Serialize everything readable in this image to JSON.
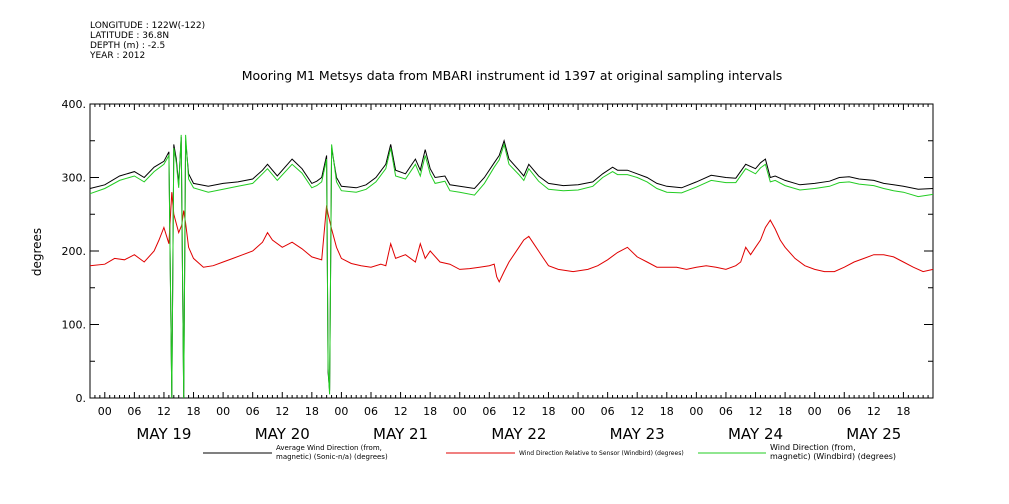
{
  "metadata": {
    "longitude": "LONGITUDE : 122W(-122)",
    "latitude": "LATITUDE : 36.8N",
    "depth": "DEPTH (m) : -2.5",
    "year": "YEAR : 2012"
  },
  "chart_data": {
    "type": "line",
    "title": "Mooring M1 Metsys data from MBARI instrument id 1397 at original sampling intervals",
    "ylabel": "degrees",
    "ylim": [
      0,
      400
    ],
    "y_ticks": [
      0,
      100,
      200,
      300,
      400
    ],
    "y_tick_labels": [
      "0.",
      "100.",
      "200.",
      "300.",
      "400."
    ],
    "xlim_hours": [
      -3,
      168
    ],
    "x_hour_labels": [
      "00",
      "06",
      "12",
      "18"
    ],
    "day_labels": [
      "MAY 19",
      "MAY 20",
      "MAY 21",
      "MAY 22",
      "MAY 23",
      "MAY 24",
      "MAY 25"
    ],
    "grid": false,
    "legend_position": "bottom",
    "series": [
      {
        "name": "Average Wind Direction (from, magnetic) (Sonic-n/a) (degrees)",
        "color": "#000000",
        "points": [
          [
            -3,
            285
          ],
          [
            0,
            290
          ],
          [
            3,
            302
          ],
          [
            6,
            308
          ],
          [
            8,
            300
          ],
          [
            10,
            314
          ],
          [
            12,
            322
          ],
          [
            13,
            335
          ],
          [
            13.6,
            0
          ],
          [
            14,
            345
          ],
          [
            14.5,
            325
          ],
          [
            15,
            290
          ],
          [
            15.5,
            355
          ],
          [
            16,
            0
          ],
          [
            16.4,
            350
          ],
          [
            17,
            305
          ],
          [
            18,
            292
          ],
          [
            21,
            288
          ],
          [
            24,
            292
          ],
          [
            27,
            294
          ],
          [
            30,
            298
          ],
          [
            32,
            310
          ],
          [
            33,
            318
          ],
          [
            35,
            302
          ],
          [
            38,
            325
          ],
          [
            40,
            312
          ],
          [
            42,
            292
          ],
          [
            43,
            295
          ],
          [
            44,
            300
          ],
          [
            45,
            330
          ],
          [
            45.3,
            35
          ],
          [
            45.6,
            10
          ],
          [
            46,
            340
          ],
          [
            47,
            300
          ],
          [
            48,
            288
          ],
          [
            51,
            286
          ],
          [
            53,
            290
          ],
          [
            55,
            300
          ],
          [
            57,
            318
          ],
          [
            58,
            345
          ],
          [
            59,
            310
          ],
          [
            61,
            305
          ],
          [
            63,
            325
          ],
          [
            64,
            310
          ],
          [
            65,
            338
          ],
          [
            66,
            312
          ],
          [
            67,
            300
          ],
          [
            69,
            302
          ],
          [
            70,
            290
          ],
          [
            72,
            288
          ],
          [
            75,
            285
          ],
          [
            77,
            300
          ],
          [
            79,
            320
          ],
          [
            80,
            330
          ],
          [
            81,
            350
          ],
          [
            82,
            325
          ],
          [
            84,
            310
          ],
          [
            85,
            302
          ],
          [
            86,
            318
          ],
          [
            88,
            302
          ],
          [
            90,
            292
          ],
          [
            93,
            289
          ],
          [
            96,
            290
          ],
          [
            99,
            294
          ],
          [
            101,
            305
          ],
          [
            103,
            314
          ],
          [
            104,
            310
          ],
          [
            106,
            310
          ],
          [
            108,
            305
          ],
          [
            110,
            300
          ],
          [
            112,
            292
          ],
          [
            114,
            288
          ],
          [
            117,
            286
          ],
          [
            120,
            294
          ],
          [
            123,
            303
          ],
          [
            126,
            300
          ],
          [
            128,
            299
          ],
          [
            130,
            318
          ],
          [
            132,
            312
          ],
          [
            133,
            320
          ],
          [
            134,
            325
          ],
          [
            135,
            300
          ],
          [
            136,
            302
          ],
          [
            138,
            296
          ],
          [
            141,
            290
          ],
          [
            144,
            292
          ],
          [
            147,
            295
          ],
          [
            149,
            300
          ],
          [
            151,
            301
          ],
          [
            153,
            298
          ],
          [
            156,
            296
          ],
          [
            158,
            292
          ],
          [
            160,
            290
          ],
          [
            162,
            288
          ],
          [
            165,
            284
          ],
          [
            168,
            285
          ]
        ]
      },
      {
        "name": "Wind Direction Relative to Sensor (Windbird) (degrees)",
        "color": "#e00000",
        "points": [
          [
            -3,
            180
          ],
          [
            0,
            182
          ],
          [
            2,
            190
          ],
          [
            4,
            188
          ],
          [
            6,
            195
          ],
          [
            8,
            185
          ],
          [
            10,
            200
          ],
          [
            11,
            215
          ],
          [
            12,
            232
          ],
          [
            13,
            210
          ],
          [
            13.6,
            280
          ],
          [
            14,
            250
          ],
          [
            15,
            225
          ],
          [
            15.6,
            235
          ],
          [
            16,
            255
          ],
          [
            16.4,
            238
          ],
          [
            17,
            205
          ],
          [
            18,
            190
          ],
          [
            20,
            178
          ],
          [
            22,
            180
          ],
          [
            24,
            185
          ],
          [
            26,
            190
          ],
          [
            28,
            195
          ],
          [
            30,
            200
          ],
          [
            32,
            212
          ],
          [
            33,
            225
          ],
          [
            34,
            215
          ],
          [
            36,
            205
          ],
          [
            38,
            212
          ],
          [
            40,
            203
          ],
          [
            42,
            192
          ],
          [
            44,
            188
          ],
          [
            45,
            262
          ],
          [
            45.3,
            250
          ],
          [
            46,
            230
          ],
          [
            47,
            205
          ],
          [
            48,
            190
          ],
          [
            50,
            183
          ],
          [
            52,
            180
          ],
          [
            54,
            178
          ],
          [
            56,
            182
          ],
          [
            57,
            180
          ],
          [
            58,
            210
          ],
          [
            59,
            190
          ],
          [
            61,
            195
          ],
          [
            63,
            185
          ],
          [
            64,
            210
          ],
          [
            65,
            190
          ],
          [
            66,
            200
          ],
          [
            68,
            185
          ],
          [
            70,
            182
          ],
          [
            72,
            175
          ],
          [
            74,
            176
          ],
          [
            76,
            178
          ],
          [
            78,
            180
          ],
          [
            79,
            182
          ],
          [
            79.5,
            165
          ],
          [
            80,
            158
          ],
          [
            81,
            172
          ],
          [
            82,
            185
          ],
          [
            84,
            205
          ],
          [
            85,
            215
          ],
          [
            86,
            220
          ],
          [
            87,
            210
          ],
          [
            88,
            200
          ],
          [
            89,
            190
          ],
          [
            90,
            180
          ],
          [
            92,
            175
          ],
          [
            95,
            172
          ],
          [
            98,
            175
          ],
          [
            100,
            180
          ],
          [
            102,
            188
          ],
          [
            104,
            198
          ],
          [
            106,
            205
          ],
          [
            108,
            192
          ],
          [
            110,
            185
          ],
          [
            112,
            178
          ],
          [
            114,
            178
          ],
          [
            116,
            178
          ],
          [
            118,
            175
          ],
          [
            120,
            178
          ],
          [
            122,
            180
          ],
          [
            124,
            178
          ],
          [
            126,
            175
          ],
          [
            128,
            180
          ],
          [
            129,
            185
          ],
          [
            130,
            205
          ],
          [
            131,
            195
          ],
          [
            132,
            205
          ],
          [
            133,
            215
          ],
          [
            134,
            232
          ],
          [
            135,
            242
          ],
          [
            136,
            230
          ],
          [
            137,
            215
          ],
          [
            138,
            205
          ],
          [
            140,
            190
          ],
          [
            142,
            180
          ],
          [
            144,
            175
          ],
          [
            146,
            172
          ],
          [
            148,
            172
          ],
          [
            150,
            178
          ],
          [
            152,
            185
          ],
          [
            154,
            190
          ],
          [
            156,
            195
          ],
          [
            158,
            195
          ],
          [
            160,
            192
          ],
          [
            162,
            185
          ],
          [
            164,
            178
          ],
          [
            166,
            172
          ],
          [
            168,
            175
          ]
        ]
      },
      {
        "name": "Wind Direction (from, magnetic) (Windbird) (degrees)",
        "color": "#22cc22",
        "points": [
          [
            -3,
            278
          ],
          [
            0,
            285
          ],
          [
            3,
            296
          ],
          [
            6,
            302
          ],
          [
            8,
            294
          ],
          [
            10,
            308
          ],
          [
            12,
            318
          ],
          [
            13,
            330
          ],
          [
            13.6,
            0
          ],
          [
            14,
            340
          ],
          [
            14.5,
            320
          ],
          [
            15,
            286
          ],
          [
            15.5,
            358
          ],
          [
            16,
            0
          ],
          [
            16.4,
            358
          ],
          [
            17,
            298
          ],
          [
            18,
            286
          ],
          [
            21,
            280
          ],
          [
            24,
            284
          ],
          [
            27,
            288
          ],
          [
            30,
            292
          ],
          [
            32,
            305
          ],
          [
            33,
            312
          ],
          [
            35,
            296
          ],
          [
            38,
            318
          ],
          [
            40,
            306
          ],
          [
            42,
            286
          ],
          [
            43,
            289
          ],
          [
            44,
            294
          ],
          [
            45,
            325
          ],
          [
            45.3,
            40
          ],
          [
            45.6,
            5
          ],
          [
            46,
            345
          ],
          [
            47,
            294
          ],
          [
            48,
            282
          ],
          [
            51,
            280
          ],
          [
            53,
            284
          ],
          [
            55,
            294
          ],
          [
            57,
            312
          ],
          [
            58,
            340
          ],
          [
            59,
            302
          ],
          [
            61,
            298
          ],
          [
            63,
            318
          ],
          [
            64,
            302
          ],
          [
            65,
            330
          ],
          [
            66,
            305
          ],
          [
            67,
            292
          ],
          [
            69,
            295
          ],
          [
            70,
            282
          ],
          [
            72,
            280
          ],
          [
            75,
            276
          ],
          [
            77,
            292
          ],
          [
            79,
            314
          ],
          [
            80,
            324
          ],
          [
            81,
            345
          ],
          [
            82,
            318
          ],
          [
            84,
            304
          ],
          [
            85,
            296
          ],
          [
            86,
            312
          ],
          [
            88,
            295
          ],
          [
            90,
            284
          ],
          [
            93,
            282
          ],
          [
            96,
            283
          ],
          [
            99,
            288
          ],
          [
            101,
            300
          ],
          [
            103,
            308
          ],
          [
            104,
            304
          ],
          [
            106,
            304
          ],
          [
            108,
            300
          ],
          [
            110,
            294
          ],
          [
            112,
            285
          ],
          [
            114,
            280
          ],
          [
            117,
            279
          ],
          [
            120,
            287
          ],
          [
            123,
            296
          ],
          [
            126,
            293
          ],
          [
            128,
            293
          ],
          [
            130,
            312
          ],
          [
            132,
            305
          ],
          [
            133,
            313
          ],
          [
            134,
            318
          ],
          [
            135,
            294
          ],
          [
            136,
            296
          ],
          [
            138,
            289
          ],
          [
            141,
            283
          ],
          [
            144,
            285
          ],
          [
            147,
            288
          ],
          [
            149,
            293
          ],
          [
            151,
            294
          ],
          [
            153,
            291
          ],
          [
            156,
            289
          ],
          [
            158,
            285
          ],
          [
            160,
            282
          ],
          [
            162,
            280
          ],
          [
            165,
            274
          ],
          [
            168,
            277
          ]
        ]
      }
    ]
  }
}
